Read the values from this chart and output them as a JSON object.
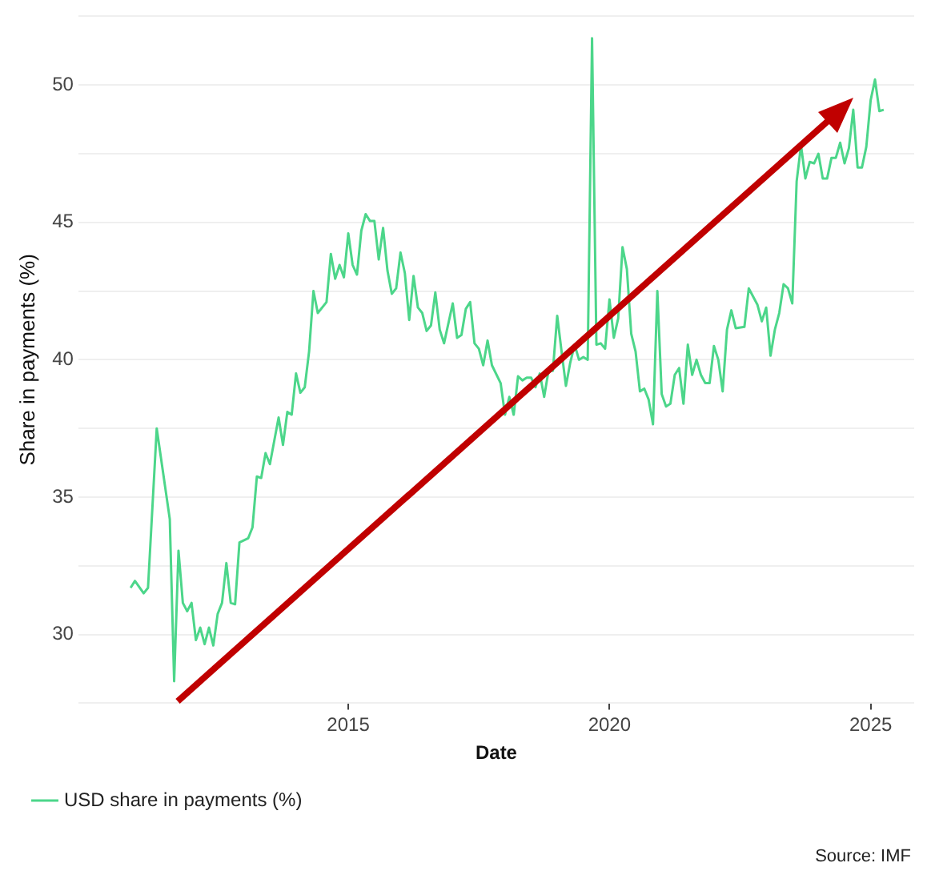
{
  "chart_data": {
    "type": "line",
    "xlabel": "Date",
    "ylabel": "Share in payments (%)",
    "annotations": [
      "Source: IMF"
    ],
    "x": [
      "2010-11",
      "2010-12",
      "2011-02",
      "2011-03",
      "2011-05",
      "2011-08",
      "2011-09",
      "2011-10",
      "2011-11",
      "2011-12",
      "2012-01",
      "2012-02",
      "2012-03",
      "2012-04",
      "2012-05",
      "2012-06",
      "2012-07",
      "2012-08",
      "2012-09",
      "2012-10",
      "2012-11",
      "2012-12",
      "2013-02",
      "2013-03",
      "2013-04",
      "2013-05",
      "2013-06",
      "2013-07",
      "2013-09",
      "2013-10",
      "2013-11",
      "2013-12",
      "2014-01",
      "2014-02",
      "2014-03",
      "2014-04",
      "2014-05",
      "2014-06",
      "2014-08",
      "2014-09",
      "2014-10",
      "2014-11",
      "2014-12",
      "2015-01",
      "2015-02",
      "2015-03",
      "2015-04",
      "2015-05",
      "2015-06",
      "2015-07",
      "2015-08",
      "2015-09",
      "2015-10",
      "2015-11",
      "2015-12",
      "2016-01",
      "2016-02",
      "2016-03",
      "2016-04",
      "2016-05",
      "2016-06",
      "2016-07",
      "2016-08",
      "2016-09",
      "2016-10",
      "2016-11",
      "2017-01",
      "2017-02",
      "2017-03",
      "2017-04",
      "2017-05",
      "2017-06",
      "2017-07",
      "2017-08",
      "2017-09",
      "2017-10",
      "2017-12",
      "2018-01",
      "2018-02",
      "2018-03",
      "2018-04",
      "2018-05",
      "2018-06",
      "2018-07",
      "2018-08",
      "2018-09",
      "2018-10",
      "2018-11",
      "2018-12",
      "2019-01",
      "2019-02",
      "2019-03",
      "2019-04",
      "2019-05",
      "2019-06",
      "2019-07",
      "2019-08",
      "2019-09",
      "2019-10",
      "2019-11",
      "2019-12",
      "2020-01",
      "2020-02",
      "2020-03",
      "2020-04",
      "2020-05",
      "2020-06",
      "2020-07",
      "2020-08",
      "2020-09",
      "2020-10",
      "2020-11",
      "2020-12",
      "2021-01",
      "2021-02",
      "2021-03",
      "2021-04",
      "2021-05",
      "2021-06",
      "2021-07",
      "2021-08",
      "2021-09",
      "2021-10",
      "2021-11",
      "2021-12",
      "2022-01",
      "2022-02",
      "2022-03",
      "2022-04",
      "2022-05",
      "2022-06",
      "2022-08",
      "2022-09",
      "2022-10",
      "2022-11",
      "2022-12",
      "2023-01",
      "2023-02",
      "2023-03",
      "2023-04",
      "2023-05",
      "2023-06",
      "2023-07",
      "2023-08",
      "2023-09",
      "2023-10",
      "2023-11",
      "2023-12",
      "2024-01",
      "2024-02",
      "2024-03",
      "2024-04",
      "2024-05",
      "2024-06",
      "2024-07",
      "2024-08",
      "2024-09",
      "2024-10",
      "2024-11",
      "2024-12",
      "2025-01",
      "2025-02",
      "2025-03",
      "2025-04"
    ],
    "series": [
      {
        "name": "USD share in payments (%)",
        "color": "#4cd68a",
        "values": [
          31.7,
          31.95,
          31.5,
          31.7,
          37.5,
          34.2,
          28.3,
          33.05,
          31.15,
          30.85,
          31.15,
          29.8,
          30.25,
          29.65,
          30.25,
          29.6,
          30.75,
          31.15,
          32.6,
          31.15,
          31.1,
          33.35,
          33.5,
          33.9,
          35.75,
          35.7,
          36.6,
          36.2,
          37.9,
          36.9,
          38.1,
          38.0,
          39.5,
          38.8,
          39.0,
          40.3,
          42.5,
          41.7,
          42.1,
          43.85,
          42.95,
          43.45,
          43.0,
          44.6,
          43.45,
          43.1,
          44.7,
          45.3,
          45.05,
          45.05,
          43.65,
          44.8,
          43.25,
          42.4,
          42.6,
          43.9,
          43.15,
          41.45,
          43.05,
          41.9,
          41.7,
          41.05,
          41.25,
          42.45,
          41.1,
          40.6,
          42.05,
          40.8,
          40.9,
          41.85,
          42.1,
          40.6,
          40.4,
          39.8,
          40.7,
          39.8,
          39.15,
          38.0,
          38.65,
          38.0,
          39.4,
          39.25,
          39.35,
          39.35,
          39.0,
          39.5,
          38.65,
          39.6,
          39.6,
          41.6,
          40.3,
          39.05,
          39.9,
          40.55,
          40.0,
          40.1,
          40.0,
          51.7,
          40.55,
          40.6,
          40.4,
          42.2,
          40.8,
          41.5,
          44.1,
          43.3,
          40.95,
          40.3,
          38.85,
          38.95,
          38.55,
          37.65,
          42.5,
          38.75,
          38.3,
          38.4,
          39.45,
          39.7,
          38.4,
          40.55,
          39.45,
          40.0,
          39.45,
          39.15,
          39.15,
          40.5,
          40.0,
          38.85,
          41.1,
          41.8,
          41.15,
          41.2,
          42.6,
          42.3,
          42.0,
          41.4,
          41.9,
          40.15,
          41.1,
          41.7,
          42.75,
          42.6,
          42.05,
          46.5,
          47.8,
          46.6,
          47.2,
          47.15,
          47.5,
          46.6,
          46.6,
          47.35,
          47.35,
          47.9,
          47.15,
          47.7,
          49.1,
          47.0,
          47.0,
          47.75,
          49.45,
          50.2,
          49.05,
          49.1
        ]
      }
    ],
    "xlim": [
      "2009-11",
      "2025-11"
    ],
    "xticks": [
      "2015",
      "2020",
      "2025"
    ],
    "ylim": [
      27.5,
      52.5
    ],
    "yticks": [
      {
        "value": 27.5,
        "label": null
      },
      30,
      {
        "value": 32.5,
        "label": null
      },
      35,
      {
        "value": 37.5,
        "label": null
      },
      40,
      {
        "value": 42.5,
        "label": null
      },
      45,
      {
        "value": 47.5,
        "label": null
      },
      50,
      {
        "value": 52.5,
        "label": null
      }
    ],
    "grid": "y",
    "legend": "bottom left",
    "marker": "none",
    "line_style": "solid"
  }
}
